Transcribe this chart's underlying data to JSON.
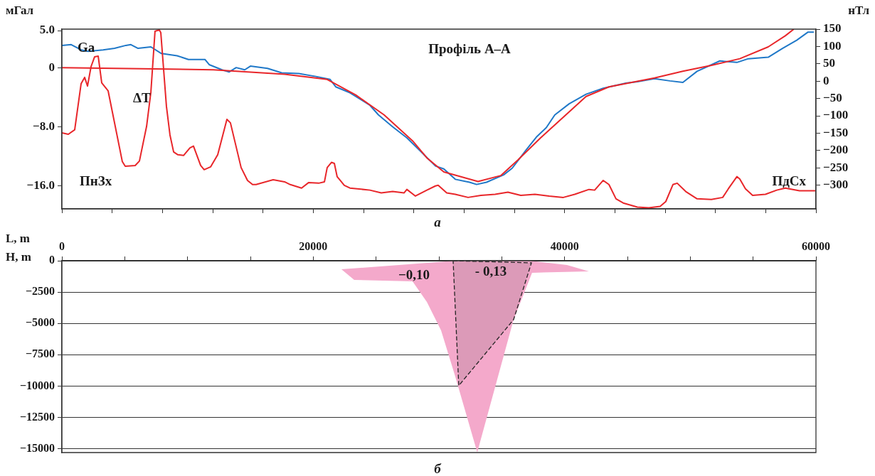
{
  "chart_data": [
    {
      "type": "line",
      "title": "Профіль А–А",
      "ylabel": "мГал",
      "y2label": "нТл",
      "tick_labels": "y",
      "xlim": [
        0,
        60000
      ],
      "xticks": [
        {
          "value": 0,
          "label": null
        },
        {
          "value": 4000,
          "label": null
        },
        {
          "value": 8000,
          "label": null
        },
        {
          "value": 12000,
          "label": null
        },
        {
          "value": 16000,
          "label": null
        },
        {
          "value": 20000,
          "label": null
        },
        {
          "value": 24000,
          "label": null
        },
        {
          "value": 28000,
          "label": null
        },
        {
          "value": 32000,
          "label": null
        },
        {
          "value": 36000,
          "label": null
        },
        {
          "value": 40000,
          "label": null
        },
        {
          "value": 44000,
          "label": null
        },
        {
          "value": 48000,
          "label": null
        },
        {
          "value": 52000,
          "label": null
        },
        {
          "value": 56000,
          "label": null
        },
        {
          "value": 60000,
          "label": null
        }
      ],
      "ylim": [
        -19.1,
        5.2
      ],
      "yticks": [
        {
          "value": 5,
          "label": "5.0"
        },
        0,
        {
          "value": -8,
          "label": "−8.0"
        },
        {
          "value": -16,
          "label": "−16.0"
        }
      ],
      "y2lim": [
        -368,
        150
      ],
      "y2ticks": [
        150,
        100,
        50,
        0,
        -50,
        -100,
        -150,
        -200,
        -250,
        -300
      ],
      "series": [
        {
          "name": "Ga",
          "color": "#1f78c8",
          "x": [
            0,
            740,
            1530,
            2090,
            3280,
            4190,
            5090,
            5490,
            6060,
            7080,
            7920,
            9170,
            10070,
            11380,
            11720,
            12740,
            13300,
            13870,
            14550,
            15000,
            16360,
            17490,
            18850,
            20210,
            21340,
            21790,
            22920,
            24510,
            25190,
            26320,
            27450,
            28590,
            29720,
            30390,
            31300,
            32430,
            33000,
            33790,
            35150,
            35830,
            36960,
            37750,
            38550,
            39220,
            40360,
            41710,
            43070,
            44880,
            45790,
            47150,
            48390,
            49410,
            50540,
            52350,
            53710,
            54620,
            56200,
            57340,
            58470,
            59370,
            59830
          ],
          "values": [
            3.0,
            3.1,
            2.4,
            2.2,
            2.4,
            2.6,
            3.0,
            3.1,
            2.6,
            2.8,
            1.9,
            1.6,
            1.1,
            1.1,
            0.4,
            -0.3,
            -0.6,
            0,
            -0.3,
            0.2,
            -0.1,
            -0.7,
            -0.8,
            -1.2,
            -1.6,
            -2.6,
            -3.4,
            -5.1,
            -6.4,
            -8.0,
            -9.5,
            -11.4,
            -13.3,
            -13.7,
            -15.1,
            -15.5,
            -15.8,
            -15.5,
            -14.5,
            -13.6,
            -11.1,
            -9.4,
            -8.1,
            -6.4,
            -4.9,
            -3.6,
            -2.8,
            -2.1,
            -1.9,
            -1.5,
            -1.8,
            -2.0,
            -0.5,
            0.9,
            0.7,
            1.2,
            1.4,
            2.6,
            3.7,
            4.8,
            4.8
          ]
        },
        {
          "color": "#e8262a",
          "x": [
            0,
            12060,
            17720,
            21110,
            23380,
            25640,
            27900,
            29040,
            30390,
            33110,
            34920,
            36280,
            38090,
            40360,
            41710,
            43530,
            47150,
            49410,
            51680,
            53940,
            56200,
            57560,
            58240
          ],
          "values": [
            0,
            -0.3,
            -0.9,
            -1.6,
            -3.7,
            -6.4,
            -9.9,
            -12.2,
            -14.1,
            -15.4,
            -14.6,
            -12.5,
            -9.5,
            -6.0,
            -3.9,
            -2.6,
            -1.4,
            -0.5,
            0.3,
            1.2,
            2.8,
            4.3,
            5.2
          ]
        },
        {
          "name": "ΔT",
          "color": "#e8262a",
          "axis": "y2",
          "x": [
            0,
            510,
            1020,
            1530,
            1810,
            2040,
            2320,
            2600,
            2890,
            3170,
            3680,
            4810,
            5040,
            5830,
            6170,
            6740,
            7080,
            7410,
            7750,
            7870,
            8320,
            8600,
            8890,
            9230,
            9680,
            10190,
            10470,
            11040,
            11320,
            11830,
            12400,
            13130,
            13410,
            14260,
            14770,
            15170,
            15450,
            16810,
            17720,
            18170,
            19070,
            19640,
            20430,
            20890,
            21110,
            21450,
            21680,
            21900,
            22470,
            22920,
            24510,
            25410,
            26320,
            27220,
            27450,
            28130,
            29040,
            29720,
            29940,
            30620,
            31300,
            32320,
            33340,
            34470,
            35490,
            36510,
            37640,
            38770,
            39900,
            40810,
            41940,
            42390,
            43070,
            43530,
            44090,
            44660,
            45790,
            46700,
            47600,
            48050,
            48620,
            48960,
            49640,
            50540,
            51680,
            52580,
            53030,
            53710,
            53940,
            54390,
            54960,
            55980,
            56880,
            57560,
            58690,
            59940
          ],
          "values": [
            -149,
            -153,
            -140,
            -7,
            11,
            -14,
            42,
            70,
            72,
            -5,
            -28,
            -232,
            -245,
            -243,
            -230,
            -130,
            -32,
            144,
            148,
            140,
            -73,
            -155,
            -204,
            -212,
            -214,
            -192,
            -187,
            -243,
            -255,
            -247,
            -212,
            -110,
            -120,
            -249,
            -286,
            -298,
            -298,
            -284,
            -290,
            -298,
            -308,
            -292,
            -294,
            -290,
            -249,
            -234,
            -237,
            -275,
            -300,
            -308,
            -314,
            -322,
            -318,
            -322,
            -312,
            -331,
            -314,
            -302,
            -300,
            -322,
            -326,
            -335,
            -329,
            -326,
            -320,
            -329,
            -326,
            -331,
            -335,
            -326,
            -312,
            -314,
            -286,
            -298,
            -339,
            -351,
            -363,
            -365,
            -361,
            -347,
            -298,
            -294,
            -318,
            -339,
            -341,
            -335,
            -310,
            -275,
            -282,
            -310,
            -329,
            -326,
            -314,
            -308,
            -316,
            -316
          ]
        }
      ],
      "annotations": [
        "ПнЗх",
        "ПдСх",
        "а"
      ]
    },
    {
      "type": "area",
      "xlabel": "L, m",
      "ylabel": "H, m",
      "grid": "y",
      "xlim": [
        0,
        60000
      ],
      "xticks": [
        0,
        {
          "value": 5000,
          "label": null
        },
        {
          "value": 10000,
          "label": null
        },
        {
          "value": 15000,
          "label": null
        },
        20000,
        {
          "value": 25000,
          "label": null
        },
        {
          "value": 30000,
          "label": null
        },
        {
          "value": 35000,
          "label": null
        },
        40000,
        {
          "value": 45000,
          "label": null
        },
        {
          "value": 50000,
          "label": null
        },
        {
          "value": 55000,
          "label": null
        },
        60000
      ],
      "ylim": [
        -15300,
        0
      ],
      "yticks": [
        0,
        -2500,
        -5000,
        -7500,
        -10000,
        -12500,
        -15000
      ],
      "series": [
        {
          "color": "#f4a9cb",
          "x": [
            22240,
            31300,
            37240,
            40190,
            41940,
            37410,
            35940,
            33050,
            31300,
            30170,
            29040,
            27900,
            23260,
            22240
          ],
          "values": [
            -680,
            0,
            0,
            -340,
            -850,
            -960,
            -4700,
            -15280,
            -9230,
            -5550,
            -3280,
            -1640,
            -1530,
            -680
          ]
        },
        {
          "color": "#dc9ab8",
          "line_style": "dashed",
          "x": [
            31130,
            37360,
            35940,
            31580,
            31130
          ],
          "values": [
            0,
            -170,
            -4700,
            -9960,
            0
          ]
        }
      ],
      "annotations": [
        "−0,10",
        "- 0,13",
        "б"
      ]
    }
  ]
}
